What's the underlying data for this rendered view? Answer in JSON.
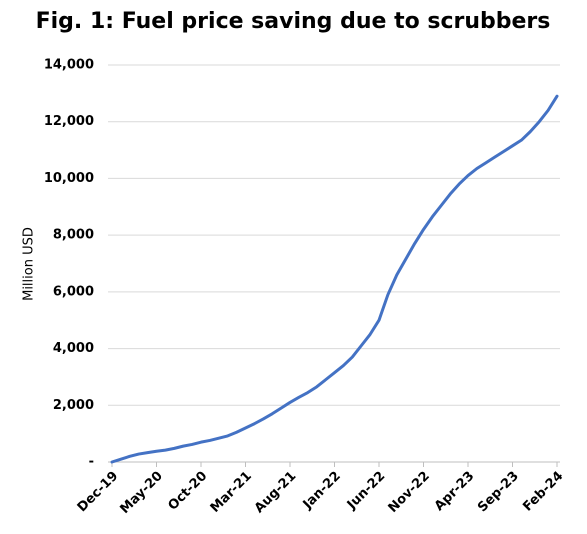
{
  "chart_data": {
    "type": "line",
    "title": "Fig. 1: Fuel price saving due to scrubbers",
    "y_label": "Million USD",
    "categories": [
      "Dec-19",
      null,
      null,
      null,
      null,
      "May-20",
      null,
      null,
      null,
      null,
      "Oct-20",
      null,
      null,
      null,
      null,
      "Mar-21",
      null,
      null,
      null,
      null,
      "Aug-21",
      null,
      null,
      null,
      null,
      "Jan-22",
      null,
      null,
      null,
      null,
      "Jun-22",
      null,
      null,
      null,
      null,
      "Nov-22",
      null,
      null,
      null,
      null,
      "Apr-23",
      null,
      null,
      null,
      null,
      "Sep-23",
      null,
      null,
      null,
      null,
      "Feb-24"
    ],
    "series": [
      {
        "name": "Fuel price saving",
        "color": "#4472c4",
        "values": [
          0,
          100,
          200,
          280,
          330,
          380,
          420,
          480,
          560,
          620,
          700,
          760,
          840,
          920,
          1050,
          1200,
          1350,
          1520,
          1700,
          1900,
          2100,
          2280,
          2450,
          2650,
          2900,
          3150,
          3400,
          3700,
          4100,
          4500,
          5000,
          5900,
          6600,
          7150,
          7700,
          8200,
          8650,
          9050,
          9450,
          9800,
          10100,
          10350,
          10550,
          10750,
          10950,
          11150,
          11350,
          11650,
          12000,
          12400,
          12900
        ]
      }
    ],
    "ylim": [
      0,
      14000
    ],
    "yticks": [
      {
        "value": 0,
        "label": "-"
      },
      {
        "value": 2000,
        "label": "2,000"
      },
      {
        "value": 4000,
        "label": "4,000"
      },
      {
        "value": 6000,
        "label": "6,000"
      },
      {
        "value": 8000,
        "label": "8,000"
      },
      {
        "value": 10000,
        "label": "10,000"
      },
      {
        "value": 12000,
        "label": "12,000"
      },
      {
        "value": 14000,
        "label": "14,000"
      }
    ],
    "grid": true
  }
}
